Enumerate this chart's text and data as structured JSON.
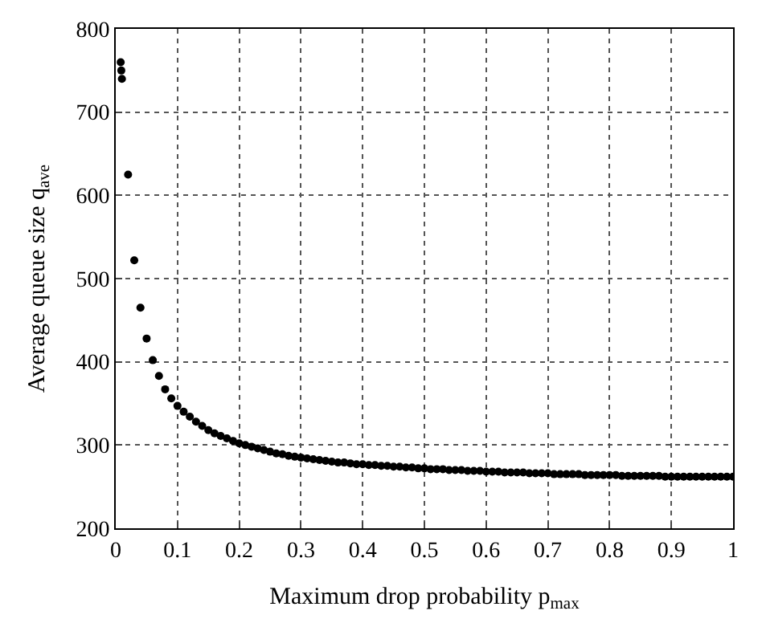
{
  "chart_data": {
    "type": "scatter",
    "xlabel": "Maximum drop probability p$_{max}$",
    "ylabel": "Average queue size q$_{ave}$",
    "x": [
      0.008,
      0.009,
      0.01,
      0.02,
      0.03,
      0.04,
      0.05,
      0.06,
      0.07,
      0.08,
      0.09,
      0.1,
      0.11,
      0.12,
      0.13,
      0.14,
      0.15,
      0.16,
      0.17,
      0.18,
      0.19,
      0.2,
      0.21,
      0.22,
      0.23,
      0.24,
      0.25,
      0.26,
      0.27,
      0.28,
      0.29,
      0.3,
      0.31,
      0.32,
      0.33,
      0.34,
      0.35,
      0.36,
      0.37,
      0.38,
      0.39,
      0.4,
      0.41,
      0.42,
      0.43,
      0.44,
      0.45,
      0.46,
      0.47,
      0.48,
      0.49,
      0.5,
      0.51,
      0.52,
      0.53,
      0.54,
      0.55,
      0.56,
      0.57,
      0.58,
      0.59,
      0.6,
      0.61,
      0.62,
      0.63,
      0.64,
      0.65,
      0.66,
      0.67,
      0.68,
      0.69,
      0.7,
      0.71,
      0.72,
      0.73,
      0.74,
      0.75,
      0.76,
      0.77,
      0.78,
      0.79,
      0.8,
      0.81,
      0.82,
      0.83,
      0.84,
      0.85,
      0.86,
      0.87,
      0.88,
      0.89,
      0.9,
      0.91,
      0.92,
      0.93,
      0.94,
      0.95,
      0.96,
      0.97,
      0.98,
      0.99,
      1.0
    ],
    "series": [
      {
        "color": "#000000",
        "values": [
          760,
          750,
          740,
          625,
          522,
          465,
          428,
          402,
          383,
          367,
          356,
          347,
          340,
          334,
          328,
          323,
          318,
          314,
          311,
          308,
          305,
          302,
          300,
          298,
          296,
          294,
          292,
          290,
          289,
          287,
          286,
          285,
          284,
          283,
          282,
          281,
          280,
          279,
          279,
          278,
          277,
          277,
          276,
          276,
          275,
          275,
          274,
          274,
          273,
          273,
          272,
          272,
          271,
          271,
          271,
          270,
          270,
          270,
          269,
          269,
          269,
          268,
          268,
          268,
          267,
          267,
          267,
          267,
          266,
          266,
          266,
          266,
          265,
          265,
          265,
          265,
          265,
          264,
          264,
          264,
          264,
          264,
          264,
          263,
          263,
          263,
          263,
          263,
          263,
          263,
          262,
          262,
          262,
          262,
          262,
          262,
          262,
          262,
          262,
          262,
          262,
          262
        ]
      }
    ],
    "xlim": [
      0,
      1
    ],
    "xticks": [
      0,
      0.1,
      0.2,
      0.3,
      0.4,
      0.5,
      0.6,
      0.7,
      0.8,
      0.9,
      1
    ],
    "ylim": [
      200,
      800
    ],
    "yticks": [
      200,
      300,
      400,
      500,
      600,
      700,
      800
    ],
    "grid": true,
    "marker": "circle"
  }
}
